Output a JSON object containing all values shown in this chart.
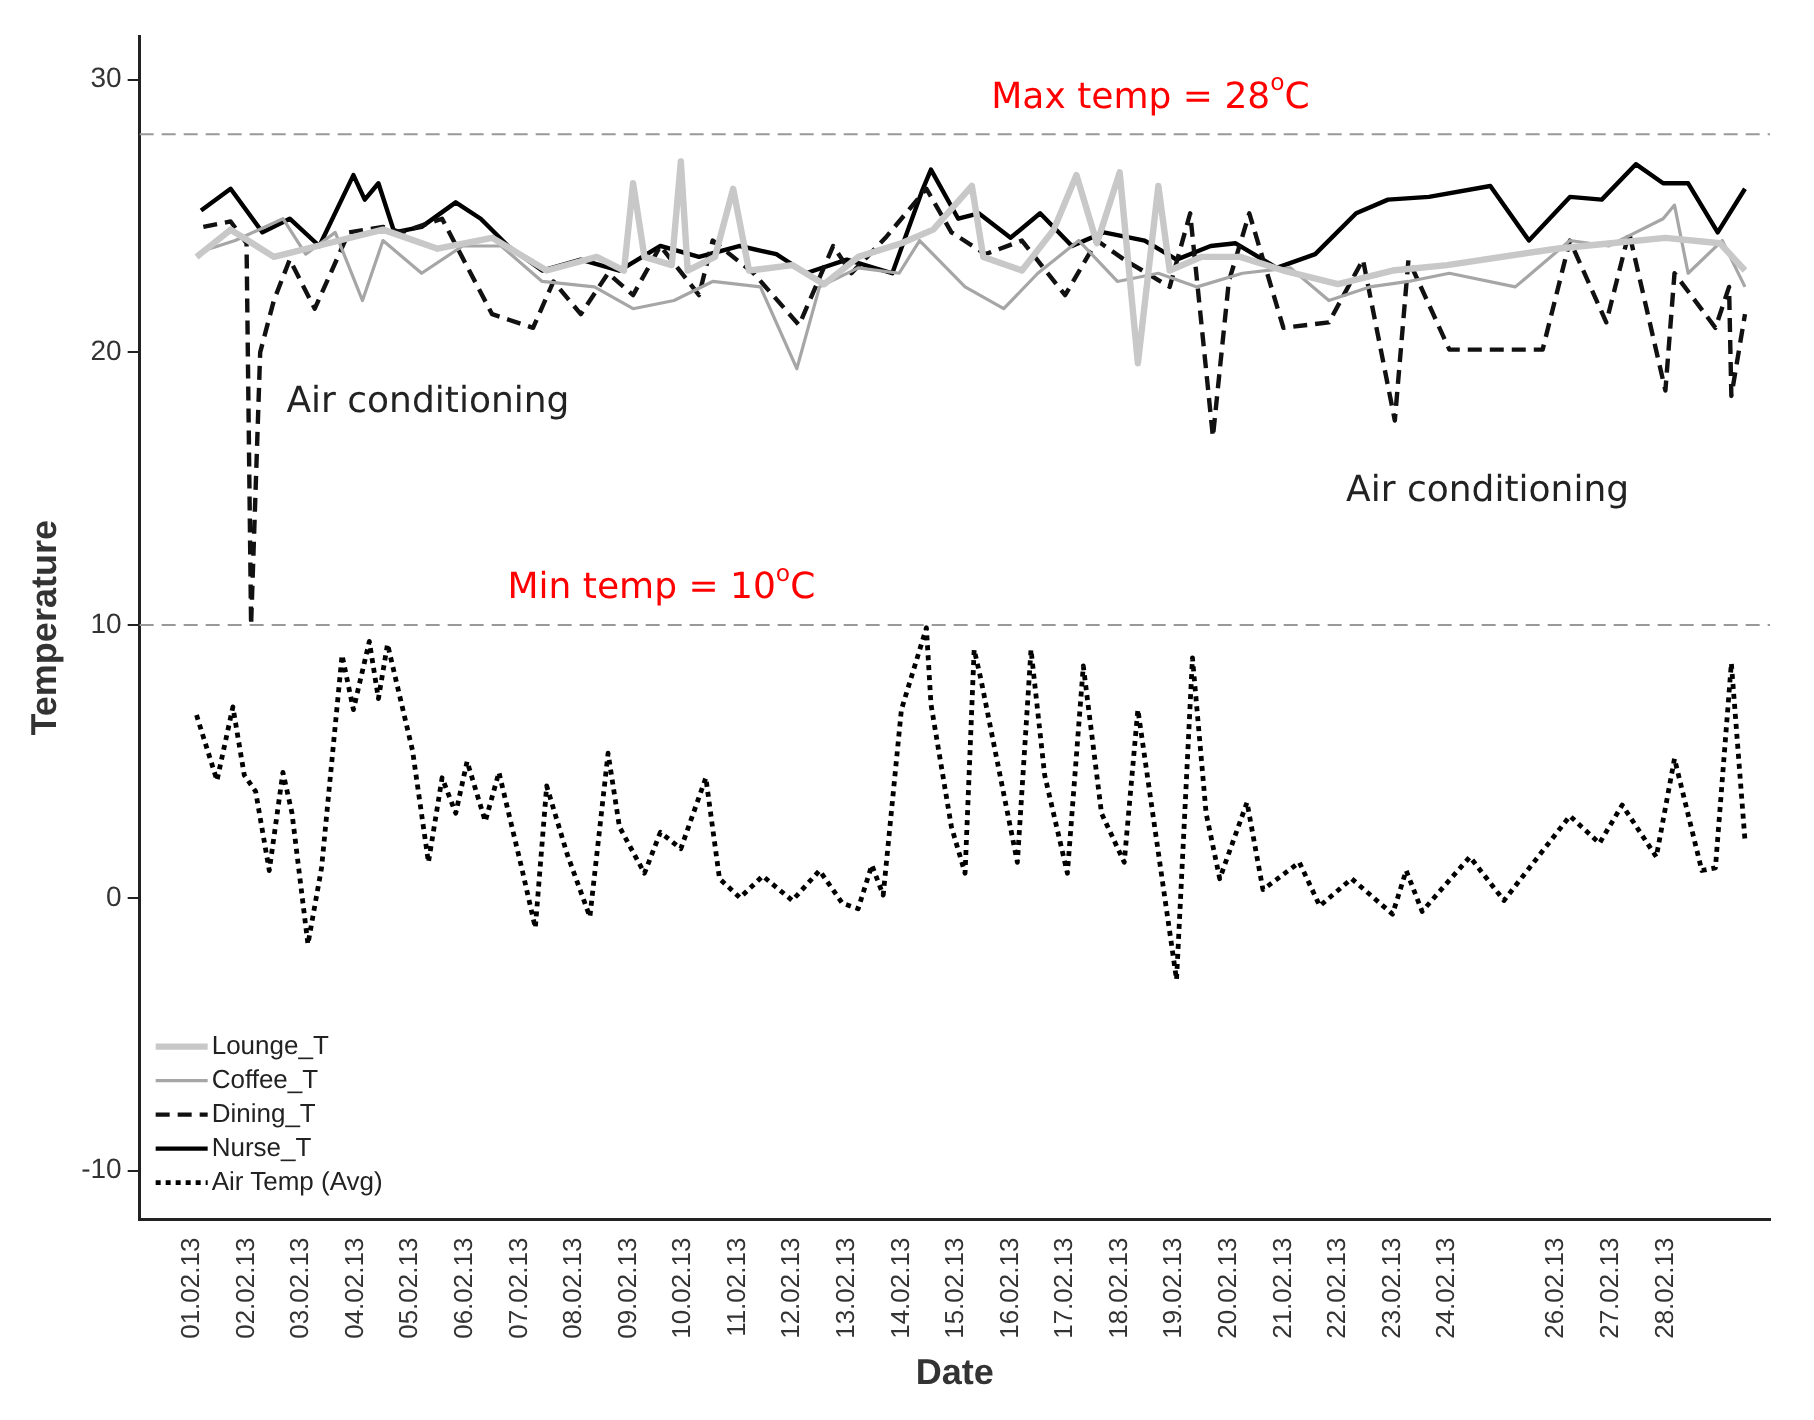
{
  "chart_data": {
    "type": "line",
    "xlabel": "Date",
    "ylabel": "Temperature",
    "xlim": [
      "--01-31T01:00",
      "--03-01T22:00"
    ],
    "xticks": [
      {
        "value": "--02-01",
        "label": "01.02.13"
      },
      {
        "value": "--02-02",
        "label": "02.02.13"
      },
      {
        "value": "--02-03",
        "label": "03.02.13"
      },
      {
        "value": "--02-04",
        "label": "04.02.13"
      },
      {
        "value": "--02-05",
        "label": "05.02.13"
      },
      {
        "value": "--02-06",
        "label": "06.02.13"
      },
      {
        "value": "--02-07",
        "label": "07.02.13"
      },
      {
        "value": "--02-08",
        "label": "08.02.13"
      },
      {
        "value": "--02-09",
        "label": "09.02.13"
      },
      {
        "value": "--02-10",
        "label": "10.02.13"
      },
      {
        "value": "--02-11",
        "label": "11.02.13"
      },
      {
        "value": "--02-12",
        "label": "12.02.13"
      },
      {
        "value": "--02-13",
        "label": "13.02.13"
      },
      {
        "value": "--02-14",
        "label": "14.02.13"
      },
      {
        "value": "--02-15",
        "label": "15.02.13"
      },
      {
        "value": "--02-16",
        "label": "16.02.13"
      },
      {
        "value": "--02-17",
        "label": "17.02.13"
      },
      {
        "value": "--02-18",
        "label": "18.02.13"
      },
      {
        "value": "--02-19",
        "label": "19.02.13"
      },
      {
        "value": "--02-20",
        "label": "20.02.13"
      },
      {
        "value": "--02-21",
        "label": "21.02.13"
      },
      {
        "value": "--02-22",
        "label": "22.02.13"
      },
      {
        "value": "--02-23",
        "label": "23.02.13"
      },
      {
        "value": "--02-24",
        "label": "24.02.13"
      },
      {
        "value": "--02-26",
        "label": "26.02.13"
      },
      {
        "value": "--02-27",
        "label": "27.02.13"
      },
      {
        "value": "--02-28",
        "label": "28.02.13"
      }
    ],
    "ylim": [
      -11.8,
      31.6
    ],
    "yticks": [
      -10,
      0,
      10,
      20,
      30
    ],
    "grid": false,
    "legend": "bottom left",
    "marker": "none",
    "series": [
      {
        "name": "Lounge_T",
        "color": "#c8c8c8",
        "line_style": "solid",
        "x": [
          "--02-01T02:00",
          "--02-01T17:00",
          "--02-02T12:00",
          "--02-03T12:00",
          "--02-04T12:00",
          "--02-05T12:00",
          "--02-06T12:00",
          "--02-07T12:00",
          "--02-08T10:00",
          "--02-08T22:00",
          "--02-09T02:00",
          "--02-09T07:00",
          "--02-09T19:00",
          "--02-09T23:00",
          "--02-10T02:00",
          "--02-10T14:00",
          "--02-10T22:00",
          "--02-11T05:00",
          "--02-12T00:00",
          "--02-12T14:00",
          "--02-13T05:00",
          "--02-14T00:00",
          "--02-14T14:00",
          "--02-15T07:00",
          "--02-15T12:00",
          "--02-16T05:00",
          "--02-16T19:00",
          "--02-17T05:00",
          "--02-17T14:00",
          "--02-18T00:00",
          "--02-18T08:00",
          "--02-18T17:00",
          "--02-18T22:00",
          "--02-19T12:00",
          "--02-20T05:00",
          "--02-21T00:00",
          "--02-22T00:00",
          "--02-23T00:00",
          "--02-24T00:00",
          "--02-26T00:00",
          "--02-27T00:00",
          "--02-28T00:00",
          "--03-01T00:00",
          "--03-01T11:00"
        ],
        "values": [
          23.5,
          24.5,
          23.5,
          24.0,
          24.5,
          23.8,
          24.2,
          23.0,
          23.5,
          23.0,
          26.2,
          23.5,
          23.2,
          27.0,
          23.0,
          23.5,
          26.0,
          23.0,
          23.2,
          22.5,
          23.5,
          24.0,
          24.5,
          26.1,
          23.5,
          23.0,
          24.5,
          26.5,
          24.0,
          26.6,
          19.6,
          26.1,
          23.0,
          23.5,
          23.5,
          23.0,
          22.5,
          23.0,
          23.2,
          23.8,
          24.0,
          24.2,
          24.0,
          23.0
        ]
      },
      {
        "name": "Coffee_T",
        "color": "#a6a6a6",
        "line_style": "solid",
        "x": [
          "--02-01T04:00",
          "--02-01T19:00",
          "--02-02T16:00",
          "--02-03T02:00",
          "--02-03T15:00",
          "--02-04T03:00",
          "--02-04T12:00",
          "--02-05T05:00",
          "--02-05T23:00",
          "--02-06T16:00",
          "--02-07T10:00",
          "--02-08T09:00",
          "--02-09T02:00",
          "--02-09T20:00",
          "--02-10T13:00",
          "--02-11T10:00",
          "--02-12T02:00",
          "--02-12T12:00",
          "--02-13T05:00",
          "--02-13T23:00",
          "--02-14T08:00",
          "--02-15T04:00",
          "--02-15T21:00",
          "--02-16T12:00",
          "--02-17T06:00",
          "--02-17T23:00",
          "--02-18T17:00",
          "--02-19T10:00",
          "--02-20T06:00",
          "--02-21T03:00",
          "--02-21T20:00",
          "--02-22T14:00",
          "--02-23T07:00",
          "--02-24T01:00",
          "--02-25T06:00",
          "--02-26T06:00",
          "--02-26T23:00",
          "--02-27T11:00",
          "--02-27T23:00",
          "--02-28T04:00",
          "--02-28T10:00",
          "--03-01T01:00",
          "--03-01T11:00"
        ],
        "values": [
          23.7,
          24.1,
          24.9,
          23.6,
          24.4,
          21.9,
          24.1,
          22.9,
          23.9,
          23.9,
          22.6,
          22.4,
          21.6,
          21.9,
          22.6,
          22.4,
          19.4,
          22.4,
          23.1,
          22.9,
          24.1,
          22.4,
          21.6,
          22.9,
          24.1,
          22.6,
          22.9,
          22.4,
          22.9,
          23.1,
          21.9,
          22.4,
          22.6,
          22.9,
          22.4,
          24.1,
          23.9,
          24.4,
          24.9,
          25.4,
          22.9,
          24.1,
          22.4
        ]
      },
      {
        "name": "Dining_T",
        "color": "#111111",
        "line_style": "dashed",
        "x": [
          "--02-01T05:00",
          "--02-01T17:00",
          "--02-02T00:00",
          "--02-02T02:00",
          "--02-02T06:00",
          "--02-02T12:00",
          "--02-02T19:00",
          "--02-03T06:00",
          "--02-03T21:00",
          "--02-04T12:00",
          "--02-04T20:00",
          "--02-05T14:00",
          "--02-06T12:00",
          "--02-07T06:00",
          "--02-07T15:00",
          "--02-08T03:00",
          "--02-08T15:00",
          "--02-09T02:00",
          "--02-09T14:00",
          "--02-10T07:00",
          "--02-10T13:00",
          "--02-11T07:00",
          "--02-12T03:00",
          "--02-12T18:00",
          "--02-13T02:00",
          "--02-13T17:00",
          "--02-14T11:00",
          "--02-14T22:00",
          "--02-15T13:00",
          "--02-16T05:00",
          "--02-17T00:00",
          "--02-17T14:00",
          "--02-18T02:00",
          "--02-18T22:00",
          "--02-19T07:00",
          "--02-19T17:00",
          "--02-20T00:00",
          "--02-20T09:00",
          "--02-21T00:00",
          "--02-21T20:00",
          "--02-22T11:00",
          "--02-23T01:00",
          "--02-23T07:00",
          "--02-24T01:00",
          "--02-25T18:00",
          "--02-26T06:00",
          "--02-26T22:00",
          "--02-27T08:00",
          "--02-28T00:00",
          "--02-28T04:00",
          "--02-28T22:00",
          "--03-01T04:00",
          "--03-01T05:00",
          "--03-01T11:00"
        ],
        "values": [
          24.6,
          24.8,
          24.0,
          10.0,
          20.0,
          21.9,
          23.4,
          21.6,
          24.4,
          24.6,
          24.4,
          24.9,
          21.4,
          20.9,
          22.6,
          21.4,
          22.9,
          22.1,
          23.9,
          22.1,
          24.1,
          22.9,
          21.0,
          23.9,
          22.9,
          24.2,
          26.0,
          24.4,
          23.6,
          24.1,
          22.1,
          24.1,
          23.4,
          22.4,
          25.1,
          16.9,
          22.6,
          25.1,
          20.9,
          21.1,
          23.4,
          17.5,
          23.4,
          20.1,
          20.1,
          24.1,
          21.1,
          24.4,
          18.6,
          22.9,
          20.9,
          22.4,
          18.4,
          21.4
        ]
      },
      {
        "name": "Nurse_T",
        "color": "#000000",
        "line_style": "solid",
        "x": [
          "--02-01T04:00",
          "--02-01T17:00",
          "--02-02T07:00",
          "--02-02T19:00",
          "--02-03T08:00",
          "--02-03T23:00",
          "--02-04T04:00",
          "--02-04T10:00",
          "--02-04T17:00",
          "--02-05T05:00",
          "--02-05T20:00",
          "--02-06T07:00",
          "--02-06T19:00",
          "--02-07T10:00",
          "--02-08T03:00",
          "--02-08T20:00",
          "--02-09T14:00",
          "--02-10T07:00",
          "--02-11T01:00",
          "--02-11T17:00",
          "--02-12T06:00",
          "--02-13T00:00",
          "--02-13T20:00",
          "--02-14T09:00",
          "--02-14T13:00",
          "--02-15T01:00",
          "--02-15T10:00",
          "--02-16T00:00",
          "--02-16T13:00",
          "--02-17T03:00",
          "--02-17T17:00",
          "--02-18T11:00",
          "--02-19T01:00",
          "--02-19T16:00",
          "--02-20T03:00",
          "--02-20T21:00",
          "--02-21T14:00",
          "--02-22T08:00",
          "--02-22T22:00",
          "--02-23T16:00",
          "--02-24T19:00",
          "--02-25T12:00",
          "--02-26T06:00",
          "--02-26T20:00",
          "--02-27T11:00",
          "--02-27T23:00",
          "--02-28T10:00",
          "--02-28T23:00",
          "--03-01T11:00"
        ],
        "values": [
          25.2,
          26.0,
          24.4,
          24.9,
          23.9,
          26.5,
          25.6,
          26.2,
          24.4,
          24.6,
          25.5,
          24.9,
          23.9,
          23.0,
          23.4,
          23.0,
          23.9,
          23.5,
          23.9,
          23.6,
          22.9,
          23.4,
          22.9,
          25.9,
          26.7,
          24.9,
          25.1,
          24.2,
          25.1,
          23.9,
          24.4,
          24.1,
          23.4,
          23.9,
          24.0,
          23.1,
          23.6,
          25.1,
          25.6,
          25.7,
          26.1,
          24.1,
          25.7,
          25.6,
          26.9,
          26.2,
          26.2,
          24.4,
          26.0
        ]
      },
      {
        "name": "Air Temp (Avg)",
        "color": "#000000",
        "line_style": "dotted",
        "x": [
          "--02-01T02:00",
          "--02-01T11:00",
          "--02-01T18:00",
          "--02-01T23:00",
          "--02-02T04:00",
          "--02-02T10:00",
          "--02-02T16:00",
          "--02-02T20:00",
          "--02-03T03:00",
          "--02-03T09:00",
          "--02-03T18:00",
          "--02-03T23:00",
          "--02-04T06:00",
          "--02-04T10:00",
          "--02-04T14:00",
          "--02-05T01:00",
          "--02-05T08:00",
          "--02-05T14:00",
          "--02-05T20:00",
          "--02-06T01:00",
          "--02-06T09:00",
          "--02-06T15:00",
          "--02-07T01:00",
          "--02-07T07:00",
          "--02-07T12:00",
          "--02-07T21:00",
          "--02-08T07:00",
          "--02-08T15:00",
          "--02-08T20:00",
          "--02-09T07:00",
          "--02-09T14:00",
          "--02-09T23:00",
          "--02-10T10:00",
          "--02-10T16:00",
          "--02-11T01:00",
          "--02-11T11:00",
          "--02-12T00:00",
          "--02-12T12:00",
          "--02-12T22:00",
          "--02-13T05:00",
          "--02-13T11:00",
          "--02-13T16:00",
          "--02-14T00:00",
          "--02-14T11:00",
          "--02-14T13:00",
          "--02-14T22:00",
          "--02-15T04:00",
          "--02-15T08:00",
          "--02-15T11:00",
          "--02-16T03:00",
          "--02-16T09:00",
          "--02-16T15:00",
          "--02-17T01:00",
          "--02-17T08:00",
          "--02-17T16:00",
          "--02-18T02:00",
          "--02-18T08:00",
          "--02-19T01:00",
          "--02-19T08:00",
          "--02-19T14:00",
          "--02-19T20:00",
          "--02-20T08:00",
          "--02-20T15:00",
          "--02-21T07:00",
          "--02-21T16:00",
          "--02-22T06:00",
          "--02-23T00:00",
          "--02-23T06:00",
          "--02-23T13:00",
          "--02-24T10:00",
          "--02-25T01:00",
          "--02-26T06:00",
          "--02-26T19:00",
          "--02-27T05:00",
          "--02-27T20:00",
          "--02-28T04:00",
          "--02-28T16:00",
          "--02-28T22:00",
          "--03-01T05:00",
          "--03-01T11:00"
        ],
        "values": [
          6.7,
          4.3,
          7.0,
          4.5,
          3.9,
          1.0,
          4.6,
          3.1,
          -1.7,
          1.1,
          8.9,
          6.9,
          9.4,
          7.3,
          9.3,
          5.4,
          1.3,
          4.4,
          3.1,
          5.0,
          2.8,
          4.6,
          1.1,
          -1.1,
          4.1,
          1.6,
          -0.7,
          5.3,
          2.6,
          0.9,
          2.4,
          1.8,
          4.4,
          0.7,
          0.0,
          0.8,
          -0.1,
          1.0,
          -0.2,
          -0.4,
          1.2,
          0.1,
          6.9,
          9.9,
          7.1,
          2.6,
          0.9,
          9.1,
          8.0,
          1.3,
          9.1,
          4.5,
          0.9,
          8.5,
          3.1,
          1.3,
          6.9,
          -3.0,
          8.8,
          3.1,
          0.7,
          3.5,
          0.3,
          1.3,
          -0.3,
          0.7,
          -0.6,
          1.0,
          -0.5,
          1.5,
          -0.1,
          3.0,
          2.0,
          3.4,
          1.5,
          5.1,
          1.0,
          1.1,
          8.6,
          2.1
        ]
      }
    ],
    "ref_lines": [
      {
        "axis": "y",
        "value": 28,
        "label": "Max temp = 28$^{o}$C",
        "color": "#999999"
      },
      {
        "axis": "y",
        "value": 10,
        "label": "Min temp = 10$^{o}$C",
        "color": "#999999"
      }
    ],
    "annotations": [
      "Air conditioning",
      "Air conditioning"
    ]
  }
}
